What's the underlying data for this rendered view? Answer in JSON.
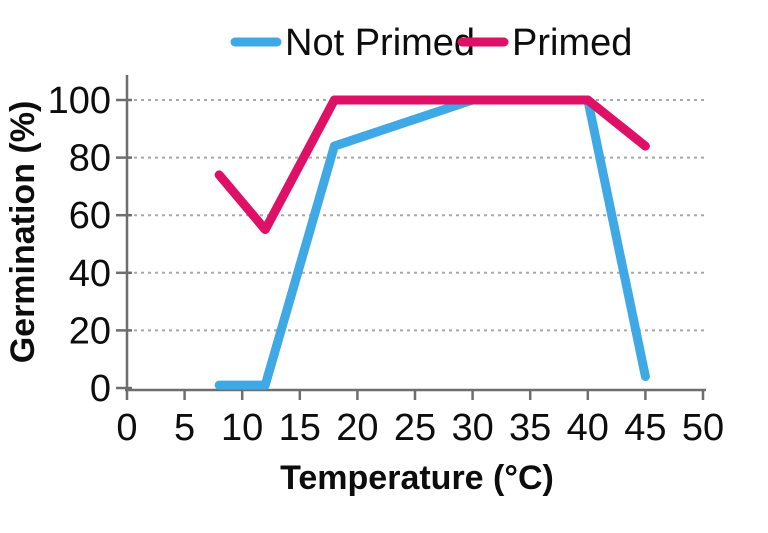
{
  "chart_data": {
    "type": "line",
    "title": "",
    "xlabel": "Temperature (°C)",
    "ylabel": "Germination (%)",
    "x": [
      8,
      12,
      18,
      30,
      40,
      45
    ],
    "series": [
      {
        "name": "Not Primed",
        "color": "#3FA9E5",
        "values": [
          1,
          1,
          84,
          100,
          100,
          4
        ]
      },
      {
        "name": "Primed",
        "color": "#DE1166",
        "values": [
          74,
          55,
          100,
          100,
          100,
          84
        ]
      }
    ],
    "xlim": [
      0,
      50
    ],
    "ylim": [
      0,
      100
    ],
    "x_ticks": [
      0,
      5,
      10,
      15,
      20,
      25,
      30,
      35,
      40,
      45,
      50
    ],
    "y_ticks": [
      0,
      20,
      40,
      60,
      80,
      100
    ],
    "grid": {
      "horizontal": true,
      "style": "dashed",
      "color": "#A8A8A8"
    },
    "legend": {
      "position": "top",
      "entries": [
        "Not Primed",
        "Primed"
      ]
    },
    "axis_color": "#6E6E6E",
    "text_color": "#0D0D0D"
  }
}
